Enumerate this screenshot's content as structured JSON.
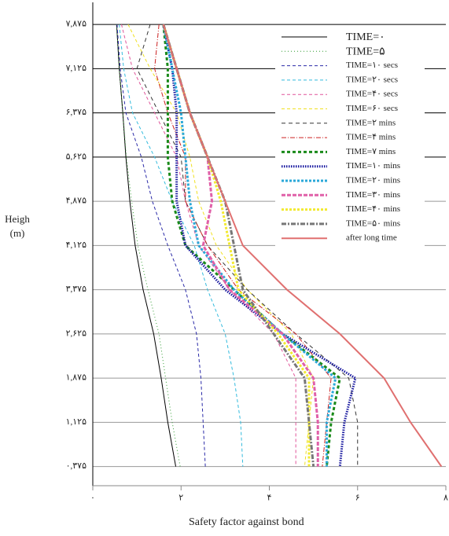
{
  "chart_data": {
    "type": "line",
    "y_label_lines": [
      "Heigh",
      "(m)"
    ],
    "x_label": "Safety factor against bond",
    "y": [
      7.875,
      7.125,
      6.375,
      5.625,
      4.875,
      4.125,
      3.375,
      2.625,
      1.875,
      1.125,
      0.375
    ],
    "xlim": [
      0,
      8
    ],
    "ylim": [
      0.05,
      8.25
    ],
    "xticks": [
      {
        "value": 0,
        "label": "۰"
      },
      {
        "value": 2,
        "label": "۲"
      },
      {
        "value": 4,
        "label": "۴"
      },
      {
        "value": 6,
        "label": "۶"
      },
      {
        "value": 8,
        "label": "۸"
      }
    ],
    "yticks": [
      {
        "value": 0.375,
        "label": "۰,۳۷۵"
      },
      {
        "value": 1.125,
        "label": "۱,۱۲۵"
      },
      {
        "value": 1.875,
        "label": "۱,۸۷۵"
      },
      {
        "value": 2.625,
        "label": "۲,۶۲۵"
      },
      {
        "value": 3.375,
        "label": "۳,۳۷۵"
      },
      {
        "value": 4.125,
        "label": "۴,۱۲۵"
      },
      {
        "value": 4.875,
        "label": "۴,۸۷۵"
      },
      {
        "value": 5.625,
        "label": "۵,۶۲۵"
      },
      {
        "value": 6.375,
        "label": "۶,۳۷۵"
      },
      {
        "value": 7.125,
        "label": "۷,۱۲۵"
      },
      {
        "value": 7.875,
        "label": "۷,۸۷۵"
      }
    ],
    "grid": true,
    "series": [
      {
        "name": "TIME=۰",
        "color": "#000000",
        "dash": "",
        "width": 1,
        "values": [
          0.54,
          0.6,
          0.68,
          0.75,
          0.84,
          0.96,
          1.14,
          1.38,
          1.55,
          1.7,
          1.88
        ]
      },
      {
        "name": "TIME=۵",
        "color": "#2e9a2e",
        "dash": "1 3",
        "width": 1,
        "values": [
          0.54,
          0.6,
          0.68,
          0.76,
          0.88,
          1.02,
          1.25,
          1.5,
          1.65,
          1.8,
          1.98
        ]
      },
      {
        "name": "TIME=۱۰  secs",
        "color": "#2a2aa8",
        "dash": "4 3",
        "width": 1,
        "values": [
          0.55,
          0.62,
          0.75,
          1.1,
          1.35,
          1.7,
          2.1,
          2.35,
          2.45,
          2.5,
          2.55
        ]
      },
      {
        "name": "TIME=۲۰  secs",
        "color": "#33bbdd",
        "dash": "4 3",
        "width": 1,
        "values": [
          0.6,
          0.7,
          0.9,
          1.4,
          1.8,
          2.3,
          2.6,
          3.0,
          3.2,
          3.35,
          3.4
        ]
      },
      {
        "name": "TIME=۴۰  secs",
        "color": "#e0559a",
        "dash": "4 3",
        "width": 1,
        "values": [
          0.65,
          0.9,
          1.4,
          1.9,
          2.1,
          2.4,
          3.1,
          4.1,
          4.6,
          4.6,
          4.6
        ]
      },
      {
        "name": "TIME=۶۰  secs",
        "color": "#f0e020",
        "dash": "4 3",
        "width": 1,
        "values": [
          0.8,
          1.3,
          1.9,
          2.2,
          2.4,
          2.8,
          3.5,
          4.5,
          5.0,
          4.9,
          4.8
        ]
      },
      {
        "name": "TIME=۲  mins",
        "color": "#333333",
        "dash": "5 4",
        "width": 1,
        "values": [
          1.3,
          1.0,
          1.5,
          2.0,
          2.1,
          2.6,
          3.5,
          4.6,
          5.8,
          6.0,
          6.0
        ]
      },
      {
        "name": "TIME=۴  mins",
        "color": "#cc2222",
        "dash": "6 2 1 2",
        "width": 1,
        "values": [
          1.5,
          1.4,
          1.7,
          2.1,
          2.1,
          2.6,
          3.3,
          4.6,
          5.4,
          5.3,
          5.2
        ]
      },
      {
        "name": "TIME=۷  mins",
        "color": "#1a8a1a",
        "dash": "4 3",
        "width": 3,
        "values": [
          1.6,
          1.7,
          1.7,
          1.7,
          1.8,
          2.1,
          3.2,
          4.3,
          5.6,
          5.4,
          5.3
        ]
      },
      {
        "name": "TIME=۱۰  mins",
        "color": "#1a1aa0",
        "dash": "1.5 1.5",
        "width": 3,
        "values": [
          1.6,
          1.8,
          1.9,
          1.9,
          1.9,
          2.1,
          3.0,
          4.3,
          5.95,
          5.7,
          5.6
        ]
      },
      {
        "name": "TIME=۲۰  mins",
        "color": "#2aa8d8",
        "dash": "3 2",
        "width": 3,
        "values": [
          1.6,
          1.8,
          2.0,
          2.1,
          2.2,
          2.4,
          3.2,
          4.3,
          5.5,
          5.3,
          5.3
        ]
      },
      {
        "name": "TIME=۳۰  mins",
        "color": "#e060a8",
        "dash": "5 2",
        "width": 3,
        "values": [
          1.6,
          1.9,
          2.2,
          2.6,
          2.7,
          2.5,
          3.1,
          4.3,
          5.0,
          5.1,
          5.1
        ]
      },
      {
        "name": "TIME=۴۰  mins",
        "color": "#f2ea30",
        "dash": "3 2",
        "width": 3,
        "values": [
          1.6,
          1.9,
          2.2,
          2.6,
          2.9,
          3.1,
          3.3,
          4.2,
          4.9,
          4.9,
          4.9
        ]
      },
      {
        "name": "TIME=۵۰  mins",
        "color": "#777777",
        "dash": "6 2 2 2",
        "width": 3,
        "values": [
          1.6,
          1.9,
          2.2,
          2.6,
          3.0,
          3.2,
          3.4,
          4.1,
          4.8,
          4.9,
          5.0
        ]
      },
      {
        "name": "after long time",
        "color": "#e07070",
        "dash": "",
        "width": 2,
        "values": [
          1.6,
          1.9,
          2.2,
          2.6,
          3.0,
          3.4,
          4.4,
          5.6,
          6.6,
          7.2,
          7.9
        ]
      }
    ]
  }
}
